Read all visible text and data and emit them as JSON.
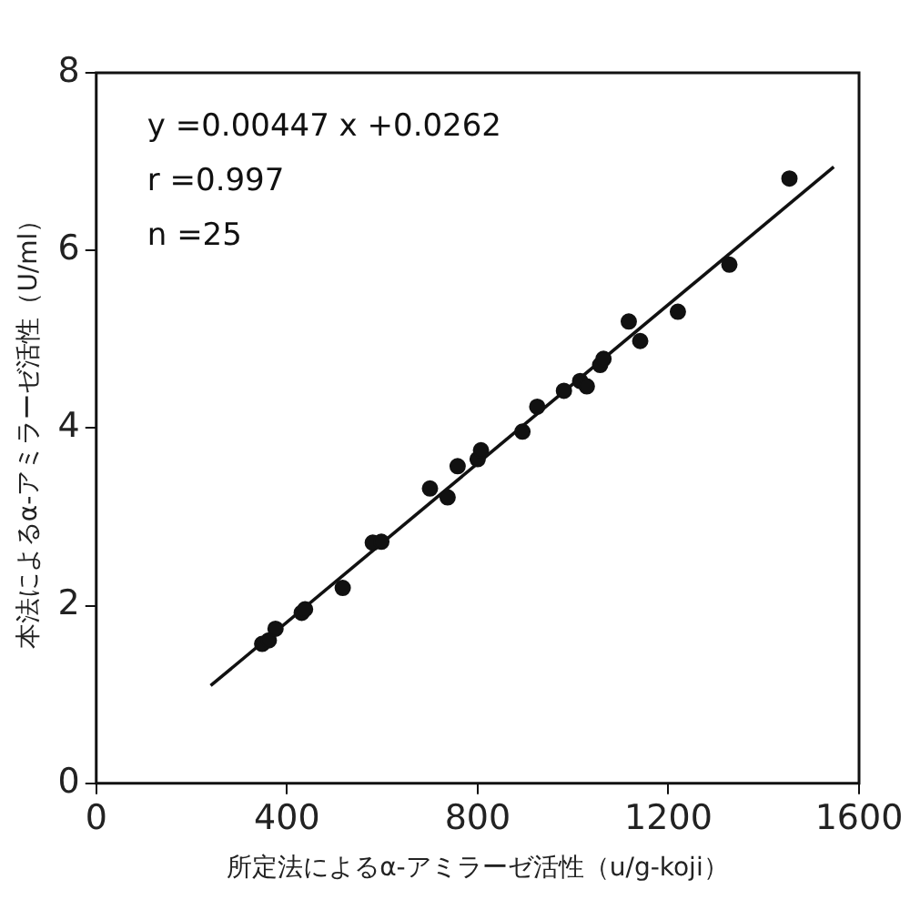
{
  "chart_data": {
    "type": "scatter",
    "xlabel": "所定法によるα-アミラーゼ活性（u/g-koji）",
    "ylabel": "本法によるα-アミラーゼ活性（U/ml）",
    "xlim": [
      0,
      1600
    ],
    "xticks": [
      0,
      400,
      800,
      1200,
      1600
    ],
    "ylim": [
      0,
      8
    ],
    "yticks": [
      0,
      2,
      4,
      6,
      8
    ],
    "grid": false,
    "legend": false,
    "marker": "circle",
    "annotations": [
      "y =0.00447 x +0.0262",
      "r =0.997",
      "n =25"
    ],
    "series": [
      {
        "type": "scatter",
        "color": "#111111",
        "x": [
          348,
          362,
          376,
          431,
          438,
          517,
          580,
          598,
          700,
          737,
          758,
          800,
          807,
          894,
          925,
          981,
          1015,
          1029,
          1057,
          1064,
          1117,
          1141,
          1220,
          1328,
          1454
        ],
        "values": [
          1.57,
          1.61,
          1.74,
          1.92,
          1.96,
          2.2,
          2.71,
          2.72,
          3.32,
          3.22,
          3.57,
          3.65,
          3.75,
          3.96,
          4.24,
          4.42,
          4.53,
          4.47,
          4.71,
          4.78,
          5.2,
          4.98,
          5.31,
          5.84,
          6.81
        ]
      },
      {
        "type": "line",
        "color": "#111111",
        "x": [
          240,
          1547
        ],
        "values": [
          1.1,
          6.94
        ],
        "marker": "none",
        "line_style": "solid"
      }
    ]
  }
}
